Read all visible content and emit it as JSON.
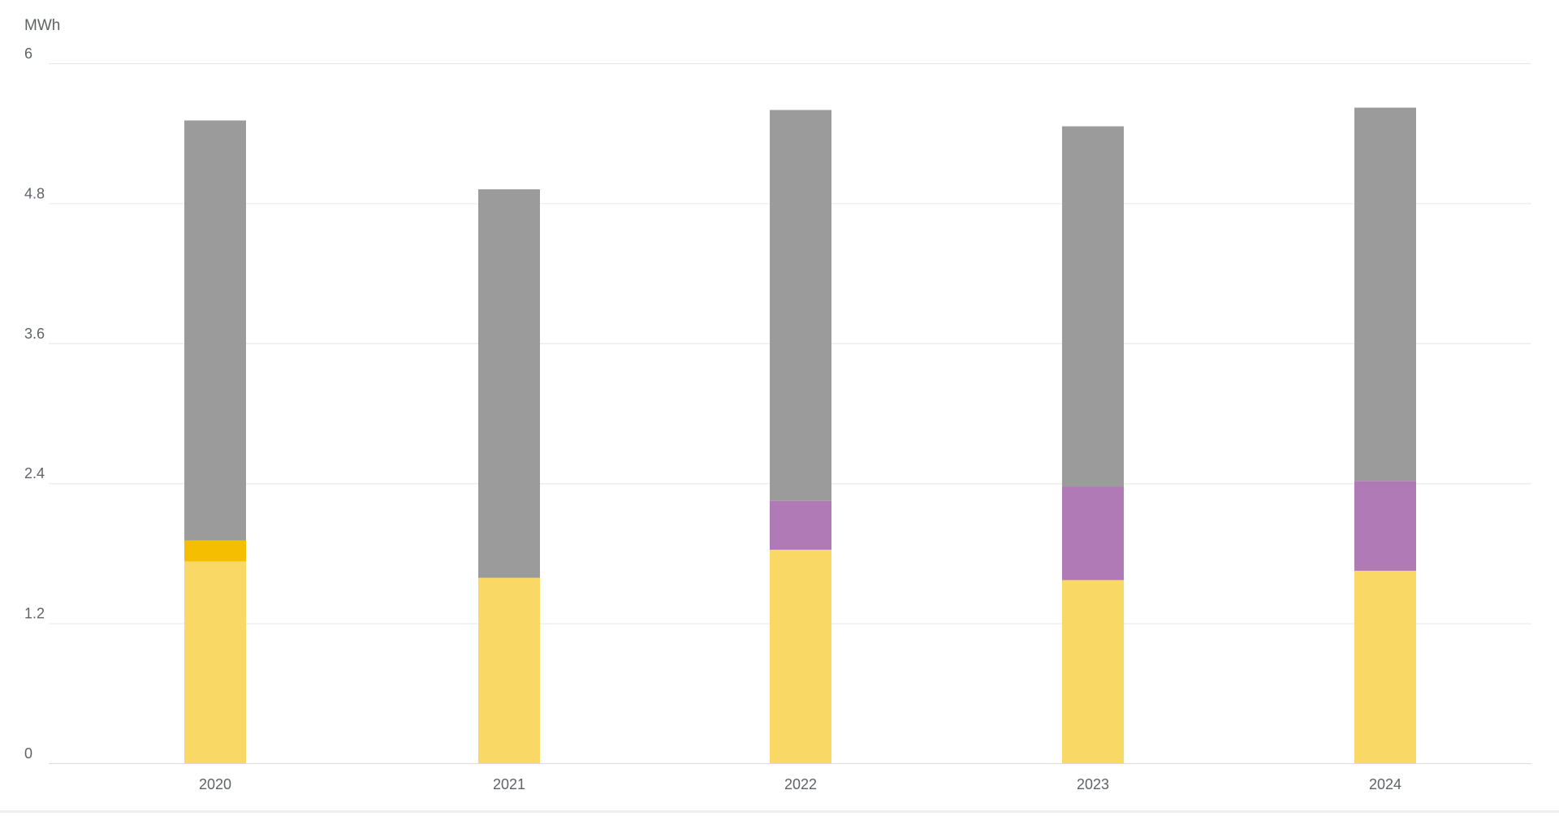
{
  "chart_data": {
    "type": "bar",
    "stacked": true,
    "y_unit_label": "MWh",
    "xlabel": "",
    "ylabel": "",
    "ylim": [
      0,
      6
    ],
    "yticks": [
      "0",
      "1.2",
      "2.4",
      "3.6",
      "4.8",
      "6"
    ],
    "ytick_values": [
      0,
      1.2,
      2.4,
      3.6,
      4.8,
      6
    ],
    "grid": true,
    "legend": "none",
    "categories": [
      "2020",
      "2021",
      "2022",
      "2023",
      "2024"
    ],
    "series": [
      {
        "color": "#f9d866",
        "values": [
          1.73,
          1.59,
          1.83,
          1.57,
          1.65
        ]
      },
      {
        "color": "#f5be00",
        "values": [
          0.18,
          0,
          0,
          0,
          0
        ]
      },
      {
        "color": "#b07ab6",
        "values": [
          0,
          0,
          0.42,
          0.8,
          0.77
        ]
      },
      {
        "color": "#9b9b9b",
        "values": [
          3.6,
          3.33,
          3.35,
          3.09,
          3.2
        ]
      }
    ]
  }
}
